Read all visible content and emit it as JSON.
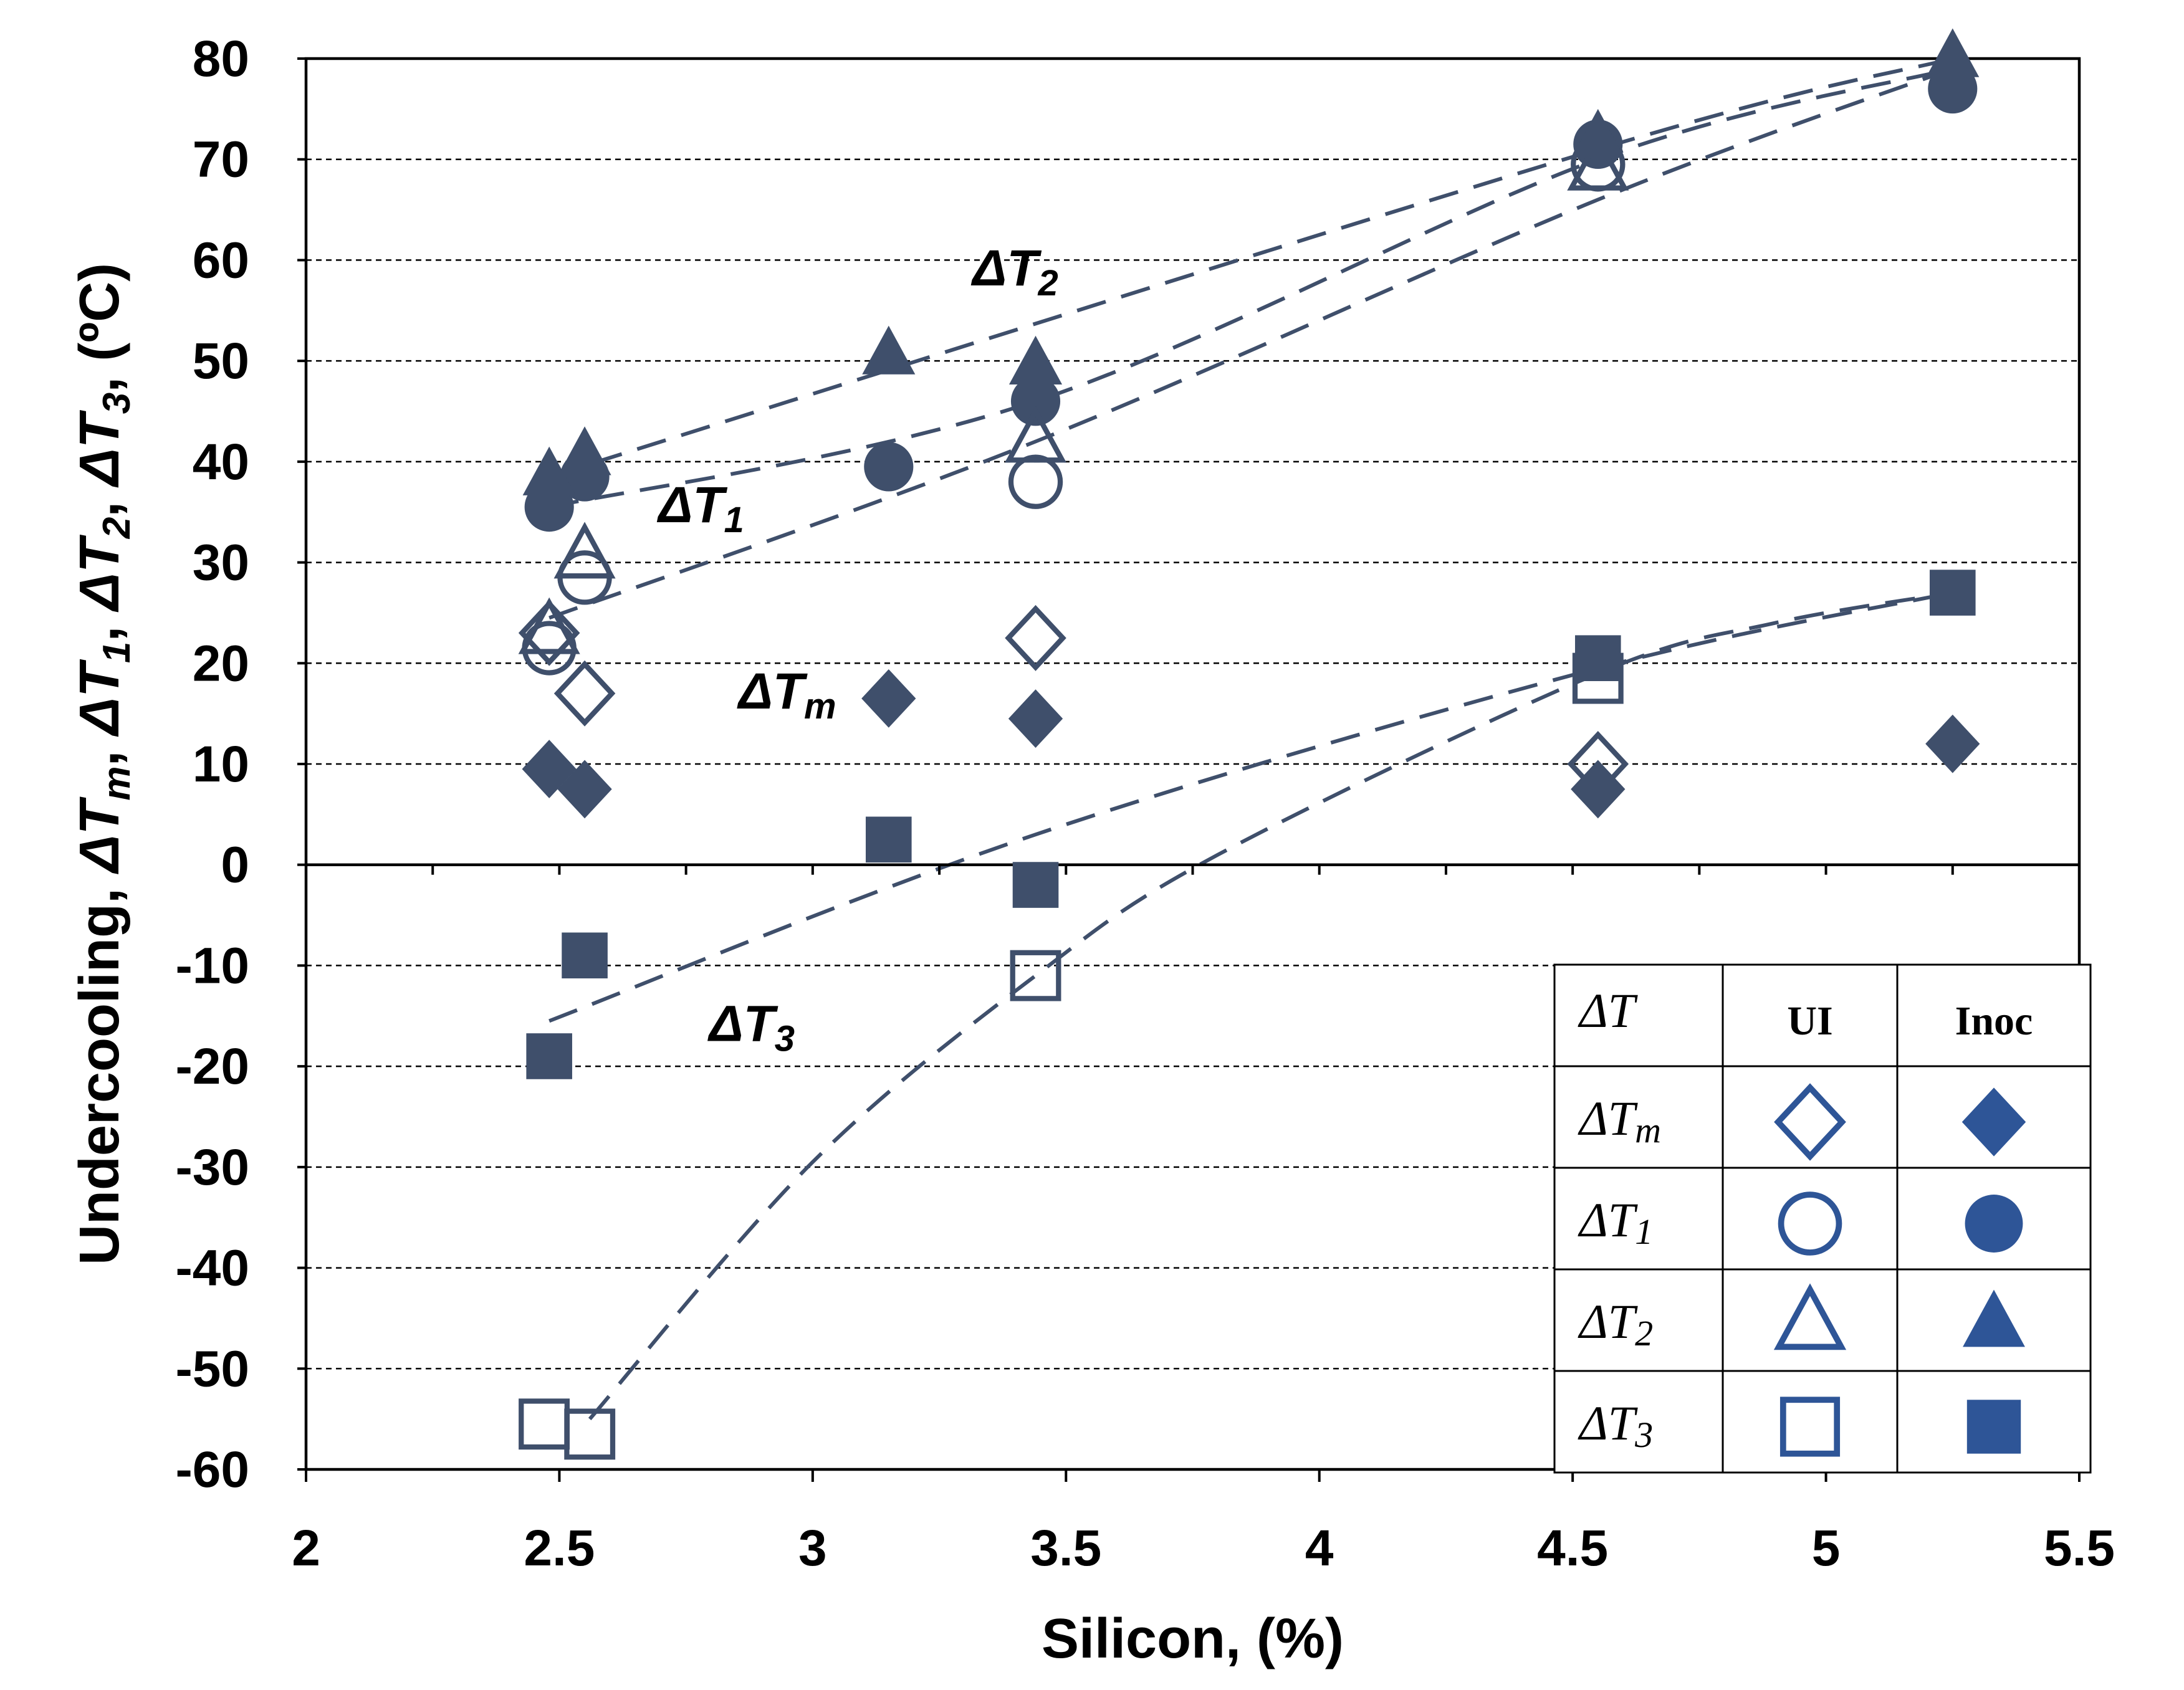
{
  "chart_data": {
    "type": "scatter",
    "title": "",
    "xlabel": "Silicon, (%)",
    "ylabel_parts": [
      {
        "t": "Undercooling, ΔT",
        "i": false
      },
      {
        "t": "m",
        "i": true,
        "sub": true
      },
      {
        "t": ", ΔT",
        "i": false
      },
      {
        "t": "1",
        "i": true,
        "sub": true
      },
      {
        "t": ", ΔT",
        "i": false
      },
      {
        "t": "2",
        "i": true,
        "sub": true
      },
      {
        "t": ", ΔT",
        "i": false
      },
      {
        "t": "3",
        "i": true,
        "sub": true
      },
      {
        "t": ", (ºC)",
        "i": false
      }
    ],
    "xlim": [
      2,
      5.5
    ],
    "ylim": [
      -60,
      80
    ],
    "xticks": [
      "2",
      "2.5",
      "3",
      "3.5",
      "4",
      "4.5",
      "5",
      "5.5"
    ],
    "yticks": [
      "80",
      "70",
      "60",
      "50",
      "40",
      "30",
      "20",
      "10",
      "0",
      "-10",
      "-20",
      "-30",
      "-40",
      "-50",
      "-60"
    ],
    "grid": "horizontal dashed",
    "color": "#3f4f6b",
    "legend_color": "#2e5597",
    "series": [
      {
        "name": "ΔTm UI",
        "marker": "diamond",
        "filled": false,
        "points": [
          [
            2.48,
            23
          ],
          [
            2.55,
            17
          ],
          [
            3.44,
            22.5
          ],
          [
            4.55,
            10
          ]
        ]
      },
      {
        "name": "ΔTm Inoc",
        "marker": "diamond",
        "filled": true,
        "points": [
          [
            2.48,
            9.5
          ],
          [
            2.55,
            7.5
          ],
          [
            3.15,
            16.5
          ],
          [
            3.44,
            14.5
          ],
          [
            4.55,
            7.5
          ],
          [
            5.25,
            12
          ]
        ]
      },
      {
        "name": "ΔT1 UI",
        "marker": "circle",
        "filled": false,
        "points": [
          [
            2.48,
            21.5
          ],
          [
            2.55,
            28.5
          ],
          [
            3.44,
            38
          ],
          [
            4.55,
            69.5
          ]
        ]
      },
      {
        "name": "ΔT1 Inoc",
        "marker": "circle",
        "filled": true,
        "points": [
          [
            2.48,
            35.5
          ],
          [
            2.55,
            38.5
          ],
          [
            3.15,
            39.5
          ],
          [
            3.44,
            46
          ],
          [
            4.55,
            71.5
          ],
          [
            5.25,
            77
          ]
        ]
      },
      {
        "name": "ΔT2 UI",
        "marker": "triangle",
        "filled": false,
        "points": [
          [
            2.48,
            23
          ],
          [
            2.55,
            30.5
          ],
          [
            3.44,
            42
          ],
          [
            4.55,
            69
          ]
        ]
      },
      {
        "name": "ΔT2 Inoc",
        "marker": "triangle",
        "filled": true,
        "points": [
          [
            2.48,
            38.5
          ],
          [
            2.55,
            40.5
          ],
          [
            3.15,
            50.5
          ],
          [
            3.44,
            49.5
          ],
          [
            4.55,
            72
          ],
          [
            5.25,
            80
          ]
        ]
      },
      {
        "name": "ΔT3 UI",
        "marker": "square",
        "filled": false,
        "points": [
          [
            2.47,
            -55.5
          ],
          [
            2.56,
            -56.5
          ],
          [
            3.44,
            -11
          ],
          [
            4.55,
            18.5
          ]
        ]
      },
      {
        "name": "ΔT3 Inoc",
        "marker": "square",
        "filled": true,
        "points": [
          [
            2.48,
            -19
          ],
          [
            2.55,
            -9
          ],
          [
            3.15,
            2.5
          ],
          [
            3.44,
            -2
          ],
          [
            4.55,
            20.5
          ],
          [
            5.25,
            27
          ]
        ]
      }
    ],
    "trendlines": [
      {
        "name": "ΔT2 Inoc trend",
        "points": [
          [
            2.48,
            38.5
          ],
          [
            4.55,
            71
          ],
          [
            5.25,
            80
          ]
        ]
      },
      {
        "name": "ΔT1 Inoc trend",
        "points": [
          [
            2.48,
            35.5
          ],
          [
            3.44,
            46
          ],
          [
            4.55,
            70
          ],
          [
            5.25,
            79
          ]
        ]
      },
      {
        "name": "ΔT1/ΔT2 UI trend",
        "points": [
          [
            2.48,
            24.5
          ],
          [
            3.44,
            42
          ],
          [
            4.55,
            66
          ],
          [
            5.25,
            79
          ]
        ]
      },
      {
        "name": "ΔT3 Inoc trend",
        "points": [
          [
            2.48,
            -15.5
          ],
          [
            3.44,
            3
          ],
          [
            4.55,
            19.5
          ],
          [
            5.25,
            27
          ]
        ]
      },
      {
        "name": "ΔT3 UI trend",
        "points": [
          [
            2.56,
            -55
          ],
          [
            3.0,
            -29.5
          ],
          [
            3.44,
            -11
          ],
          [
            3.8,
            1
          ],
          [
            4.55,
            19
          ],
          [
            4.9,
            24
          ],
          [
            5.25,
            27
          ]
        ]
      }
    ],
    "annotations": [
      {
        "name": "ΔT2",
        "x": 3.4,
        "y": 57.5,
        "base": "ΔT",
        "sub": "2"
      },
      {
        "name": "ΔT1",
        "x": 2.78,
        "y": 34,
        "base": "ΔT",
        "sub": "1"
      },
      {
        "name": "ΔTm",
        "x": 2.95,
        "y": 15.5,
        "base": "ΔT",
        "sub": "m"
      },
      {
        "name": "ΔT3",
        "x": 2.88,
        "y": -17.5,
        "base": "ΔT",
        "sub": "3"
      }
    ],
    "legend_table": {
      "headers": [
        "ΔT",
        "UI",
        "Inoc"
      ],
      "rows": [
        {
          "label": "ΔT",
          "sub": "m",
          "marker": "diamond"
        },
        {
          "label": "ΔT",
          "sub": "1",
          "marker": "circle"
        },
        {
          "label": "ΔT",
          "sub": "2",
          "marker": "triangle"
        },
        {
          "label": "ΔT",
          "sub": "3",
          "marker": "square"
        }
      ],
      "placement": "bottom-right"
    }
  }
}
